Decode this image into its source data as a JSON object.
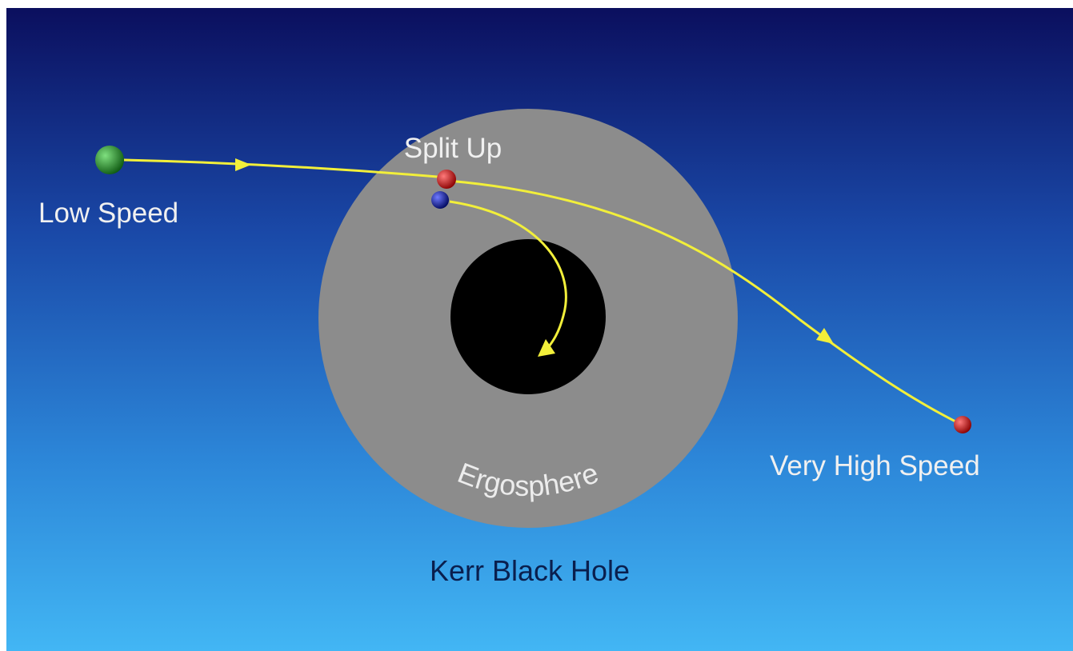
{
  "labels": {
    "split": "Split Up",
    "low": "Low Speed",
    "high": "Very High Speed",
    "ergosphere": "Ergosphere",
    "title": "Kerr Black Hole"
  }
}
